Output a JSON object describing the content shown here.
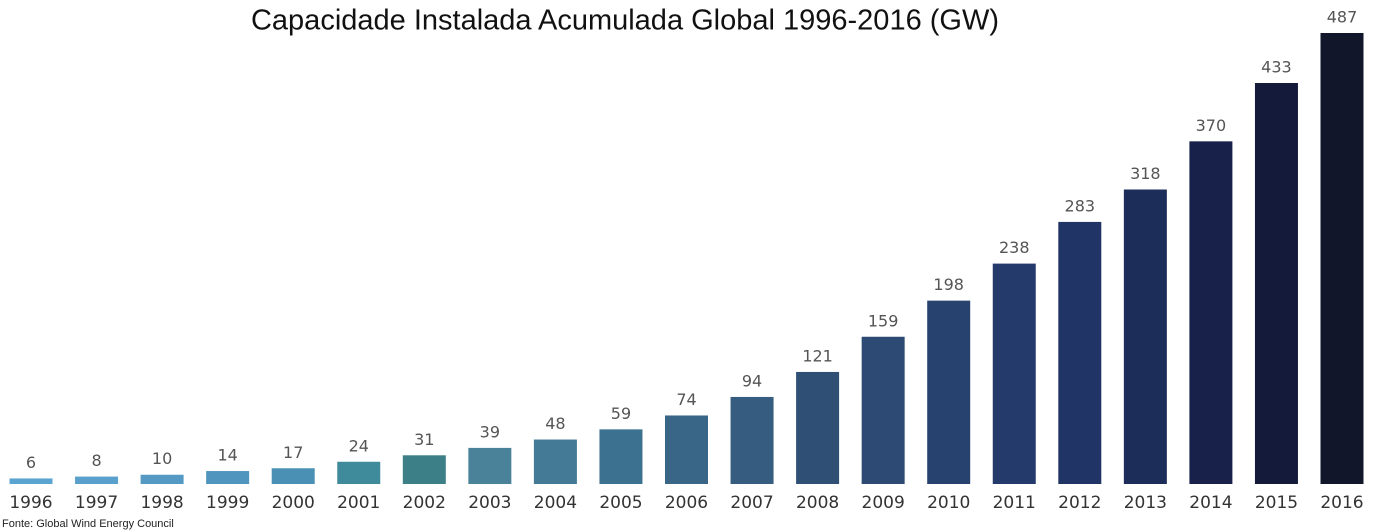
{
  "chart_data": {
    "type": "bar",
    "title": "Capacidade Instalada Acumulada Global 1996-2016 (GW)",
    "source": "Fonte: Global Wind Energy Council",
    "categories": [
      "1996",
      "1997",
      "1998",
      "1999",
      "2000",
      "2001",
      "2002",
      "2003",
      "2004",
      "2005",
      "2006",
      "2007",
      "2008",
      "2009",
      "2010",
      "2011",
      "2012",
      "2013",
      "2014",
      "2015",
      "2016"
    ],
    "values": [
      6,
      8,
      10,
      14,
      17,
      24,
      31,
      39,
      48,
      59,
      74,
      94,
      121,
      159,
      198,
      238,
      283,
      318,
      370,
      433,
      487
    ],
    "colors": [
      "#5ba3d0",
      "#5aa0cc",
      "#559ac4",
      "#4f95bd",
      "#4a90b5",
      "#3f8b9c",
      "#3d7f86",
      "#4a8399",
      "#447a96",
      "#3d7190",
      "#396687",
      "#365d80",
      "#2f4f75",
      "#2c4a74",
      "#27426f",
      "#233a6a",
      "#213466",
      "#1c2d5a",
      "#17214a",
      "#131a3a",
      "#12162a"
    ]
  }
}
